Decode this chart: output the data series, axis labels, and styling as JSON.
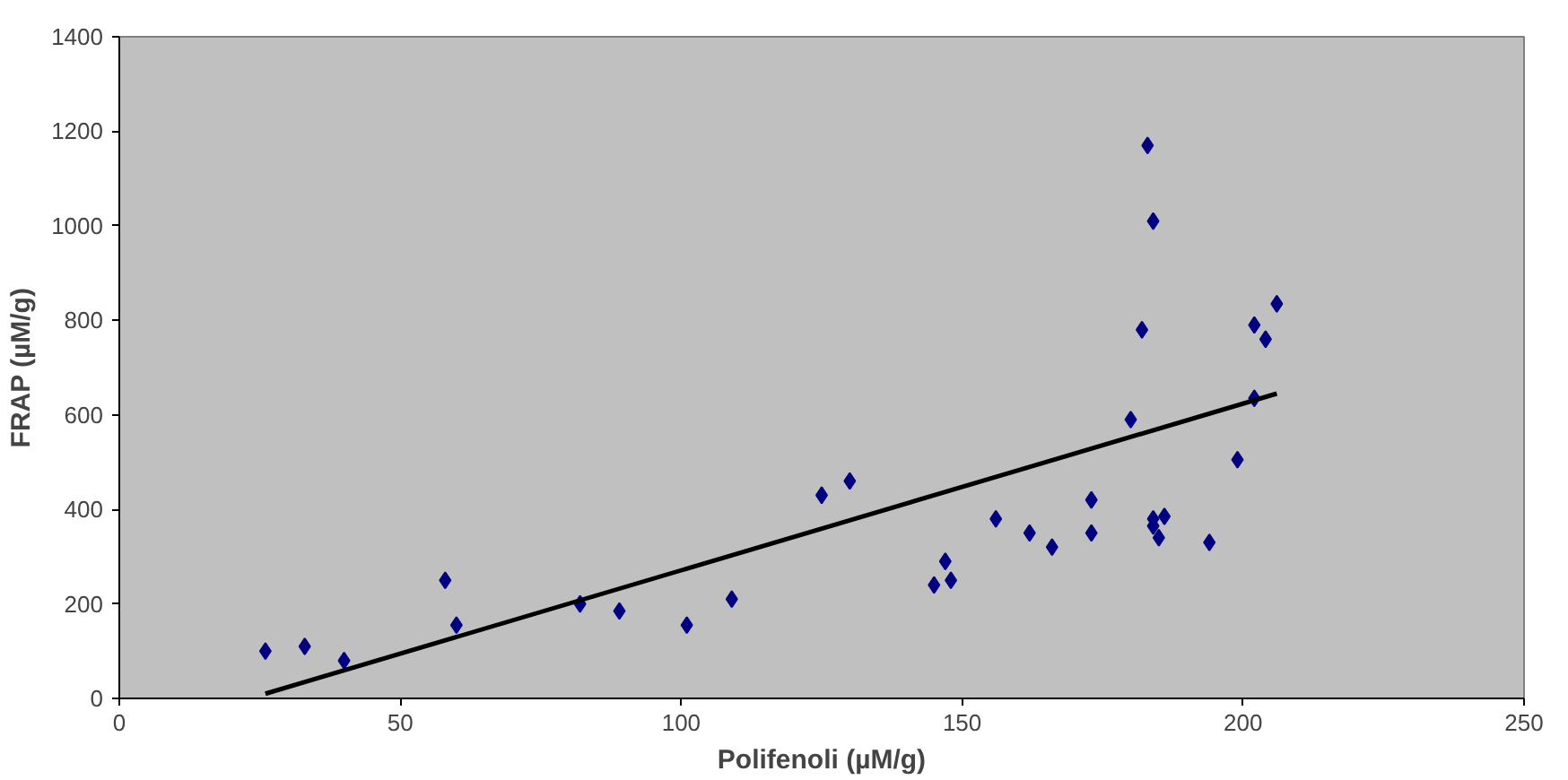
{
  "chart_data": {
    "type": "scatter",
    "xlabel": "Polifenoli (µM/g)",
    "ylabel": "FRAP (µM/g)",
    "xlim": [
      0,
      250
    ],
    "ylim": [
      0,
      1400
    ],
    "xticks": [
      0,
      50,
      100,
      150,
      200,
      250
    ],
    "yticks": [
      0,
      200,
      400,
      600,
      800,
      1000,
      1200,
      1400
    ],
    "grid": false,
    "series": [
      {
        "marker": "diamond",
        "color": "#000080",
        "x": [
          26,
          33,
          40,
          58,
          60,
          82,
          89,
          101,
          109,
          125,
          130,
          145,
          147,
          148,
          156,
          162,
          166,
          173,
          173,
          180,
          182,
          183,
          184,
          184,
          185,
          186,
          184,
          194,
          199,
          202,
          202,
          204,
          206
        ],
        "values": [
          100,
          110,
          80,
          250,
          155,
          200,
          185,
          155,
          210,
          430,
          460,
          240,
          290,
          250,
          380,
          350,
          320,
          420,
          350,
          590,
          780,
          1170,
          1010,
          365,
          340,
          385,
          380,
          330,
          505,
          790,
          635,
          760,
          835
        ]
      },
      {
        "type": "line",
        "marker": "none",
        "color": "#000000",
        "x": [
          26,
          206
        ],
        "values": [
          10,
          645
        ]
      }
    ]
  }
}
